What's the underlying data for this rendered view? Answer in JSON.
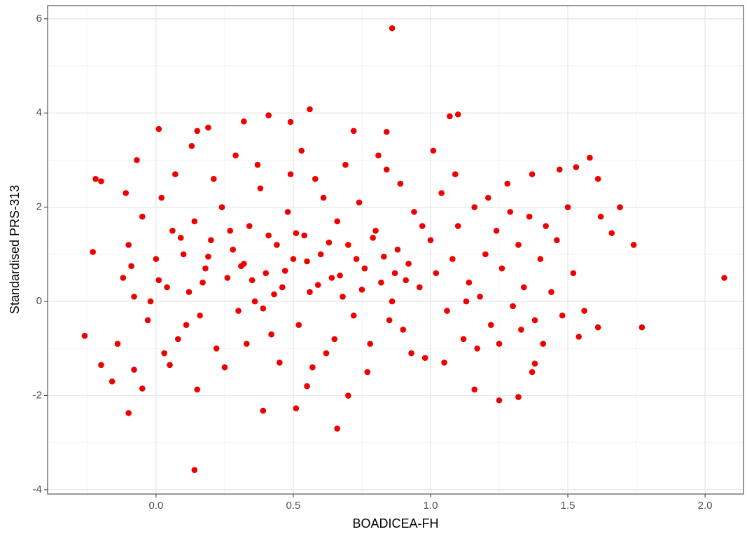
{
  "chart_data": {
    "type": "scatter",
    "x_label": "BOADICEA-FH",
    "y_label": "Standardised PRS-313",
    "xlim": [
      -0.395,
      2.14
    ],
    "ylim": [
      -4.09,
      6.28
    ],
    "xticks": [
      {
        "value": 0,
        "label": "0.0"
      },
      0.5,
      {
        "value": 1,
        "label": "1.0"
      },
      1.5,
      {
        "value": 2,
        "label": "2.0"
      }
    ],
    "yticks": [
      -4,
      -2,
      0,
      2,
      4,
      6
    ],
    "grid": true,
    "series": [
      {
        "color": "#ee0000",
        "x": [
          0.86,
          0.56,
          0.41,
          1.1,
          1.07,
          0.32,
          0.49,
          0.01,
          0.19,
          0.15,
          0.72,
          0.84,
          -0.26,
          -0.1,
          0.14,
          0.66,
          0.39,
          0.51,
          1.25,
          1.32,
          2.07,
          1.77,
          1.74,
          1.69,
          1.66,
          1.62,
          1.61,
          1.61,
          1.58,
          1.53,
          1.5,
          1.47,
          1.54,
          1.56,
          1.41,
          1.37,
          1.38,
          1.16,
          0.15,
          0.7,
          0.55,
          -0.2,
          -0.22,
          -0.23,
          -0.2,
          -0.16,
          -0.08,
          -0.05,
          0.05,
          -0.12,
          -0.1,
          -0.08,
          -0.05,
          -0.03,
          0.0,
          0.02,
          0.04,
          0.06,
          0.08,
          0.1,
          0.12,
          0.14,
          0.16,
          0.18,
          0.2,
          0.22,
          0.24,
          0.26,
          0.28,
          0.3,
          0.32,
          0.34,
          0.36,
          0.38,
          0.4,
          0.42,
          0.44,
          0.46,
          0.48,
          0.5,
          0.52,
          0.54,
          0.56,
          0.58,
          0.6,
          0.62,
          0.64,
          0.66,
          0.68,
          0.7,
          0.72,
          0.74,
          0.76,
          0.78,
          0.8,
          0.82,
          0.84,
          0.86,
          0.88,
          0.9,
          0.92,
          0.94,
          0.96,
          0.98,
          1.0,
          1.02,
          1.04,
          1.06,
          1.08,
          1.1,
          1.12,
          1.14,
          1.16,
          1.18,
          1.2,
          1.22,
          1.24,
          1.26,
          1.28,
          1.3,
          1.32,
          1.34,
          1.36,
          1.38,
          1.4,
          1.44,
          1.46,
          1.48,
          1.52,
          -0.14,
          -0.11,
          -0.07,
          -0.02,
          0.03,
          0.07,
          0.11,
          0.13,
          0.17,
          0.21,
          0.25,
          0.29,
          0.33,
          0.37,
          0.41,
          0.45,
          0.49,
          0.53,
          0.57,
          0.61,
          0.65,
          0.69,
          0.73,
          0.77,
          0.81,
          0.85,
          0.89,
          0.93,
          0.97,
          1.01,
          1.05,
          1.09,
          1.13,
          1.17,
          1.21,
          1.25,
          1.29,
          1.33,
          1.37,
          1.42,
          0.35,
          0.47,
          0.55,
          0.63,
          0.43,
          0.31,
          0.59,
          0.67,
          0.51,
          0.39,
          0.75,
          0.83,
          0.91,
          0.79,
          0.87,
          0.27,
          0.19,
          0.09,
          0.01,
          -0.09
        ],
        "y": [
          5.8,
          4.08,
          3.95,
          3.97,
          3.93,
          3.82,
          3.81,
          3.66,
          3.69,
          3.62,
          3.62,
          3.6,
          -0.73,
          -2.37,
          -3.58,
          -2.7,
          -2.32,
          -2.27,
          -2.1,
          -2.03,
          0.5,
          -0.55,
          1.2,
          2.0,
          1.45,
          1.8,
          2.6,
          -0.55,
          3.05,
          2.85,
          2.0,
          2.8,
          -0.75,
          -0.2,
          -0.9,
          -1.5,
          -1.32,
          -1.87,
          -1.87,
          -2.0,
          -1.8,
          2.55,
          2.6,
          1.05,
          -1.35,
          -1.7,
          -1.45,
          -1.85,
          -1.35,
          0.5,
          1.2,
          0.1,
          1.8,
          -0.4,
          0.9,
          2.2,
          0.3,
          1.5,
          -0.8,
          1.0,
          0.2,
          1.7,
          -0.3,
          0.7,
          1.3,
          -1.0,
          2.0,
          0.5,
          1.1,
          -0.2,
          0.8,
          1.6,
          0.0,
          2.4,
          0.6,
          -0.7,
          1.2,
          0.3,
          1.9,
          0.9,
          -0.5,
          1.4,
          0.2,
          2.6,
          1.0,
          -1.1,
          0.5,
          1.7,
          0.1,
          1.2,
          -0.3,
          2.1,
          0.7,
          -0.9,
          1.5,
          0.4,
          2.8,
          0.0,
          1.1,
          -0.6,
          0.8,
          1.9,
          0.3,
          -1.2,
          1.3,
          0.6,
          2.3,
          -0.2,
          0.9,
          1.6,
          -0.8,
          0.4,
          2.0,
          0.1,
          1.0,
          -0.5,
          1.5,
          0.7,
          2.5,
          -0.1,
          1.2,
          0.3,
          1.8,
          -0.4,
          0.9,
          0.2,
          1.3,
          -0.3,
          0.6,
          -0.9,
          2.3,
          3.0,
          0.0,
          -1.1,
          2.7,
          -0.5,
          3.3,
          0.4,
          2.6,
          -1.4,
          3.1,
          -0.9,
          2.9,
          1.4,
          -1.3,
          2.7,
          3.2,
          -1.4,
          2.2,
          -0.8,
          2.9,
          0.9,
          -1.5,
          3.1,
          -0.4,
          2.5,
          -1.1,
          1.6,
          3.2,
          -1.3,
          2.7,
          0.0,
          -1.0,
          2.2,
          -0.9,
          1.9,
          -0.6,
          2.7,
          1.6,
          0.45,
          0.65,
          0.85,
          1.25,
          0.15,
          0.75,
          0.35,
          0.55,
          1.45,
          -0.15,
          0.25,
          0.95,
          0.45,
          1.35,
          0.6,
          1.5,
          0.95,
          1.35,
          0.45,
          0.75
        ]
      }
    ]
  }
}
